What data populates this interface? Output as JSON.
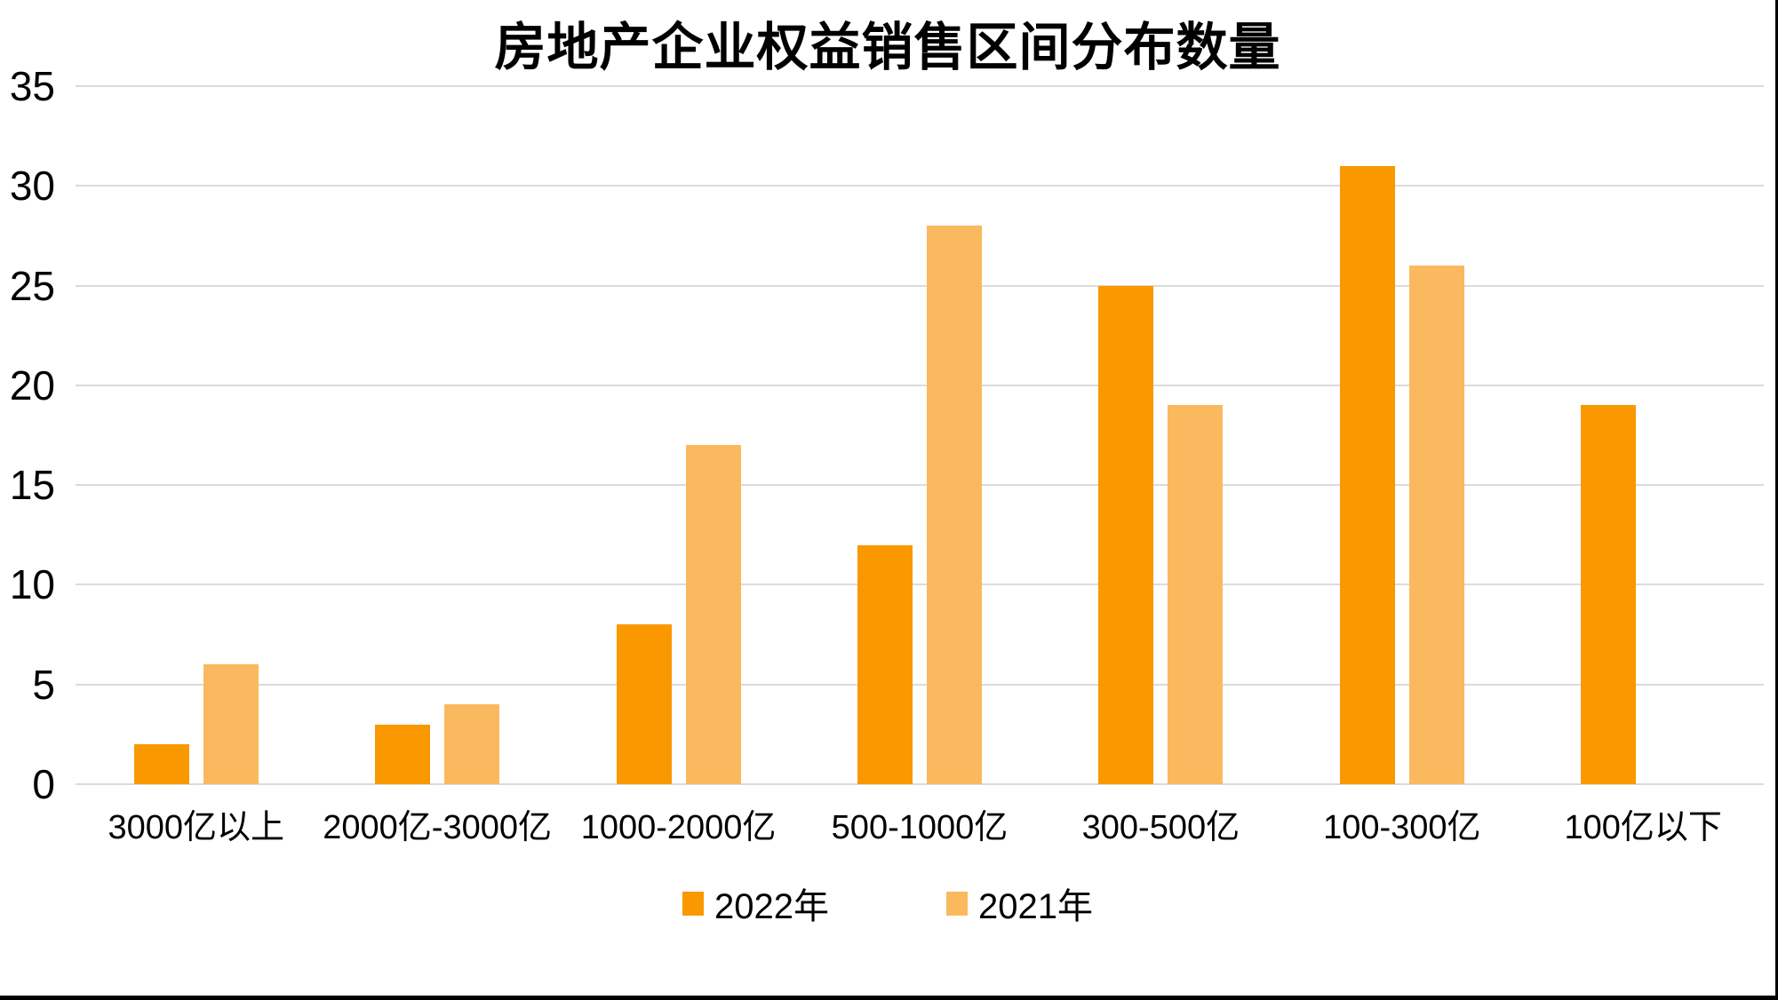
{
  "title": "房地产企业权益销售区间分布数量",
  "colors": {
    "series_2022": "#FA9800",
    "series_2021": "#FBB95F",
    "gridline": "#DBDBDB",
    "text": "#000000",
    "frame": "#000000",
    "background": "#FFFFFF"
  },
  "chart_data": {
    "type": "bar",
    "title": "房地产企业权益销售区间分布数量",
    "categories": [
      "3000亿以上",
      "2000亿-3000亿",
      "1000-2000亿",
      "500-1000亿",
      "300-500亿",
      "100-300亿",
      "100亿以下"
    ],
    "series": [
      {
        "name": "2022年",
        "color": "#FA9800",
        "values": [
          2,
          3,
          8,
          12,
          25,
          31,
          19
        ]
      },
      {
        "name": "2021年",
        "color": "#FBB95F",
        "values": [
          6,
          4,
          17,
          28,
          19,
          26,
          null
        ]
      }
    ],
    "xlabel": "",
    "ylabel": "",
    "ylim": [
      0,
      35
    ],
    "yticks": [
      0,
      5,
      10,
      15,
      20,
      25,
      30,
      35
    ],
    "grid": "horizontal-on",
    "legend_position": "bottom-center"
  },
  "legend": {
    "items": [
      {
        "label": "2022年",
        "color": "#FA9800"
      },
      {
        "label": "2021年",
        "color": "#FBB95F"
      }
    ]
  }
}
